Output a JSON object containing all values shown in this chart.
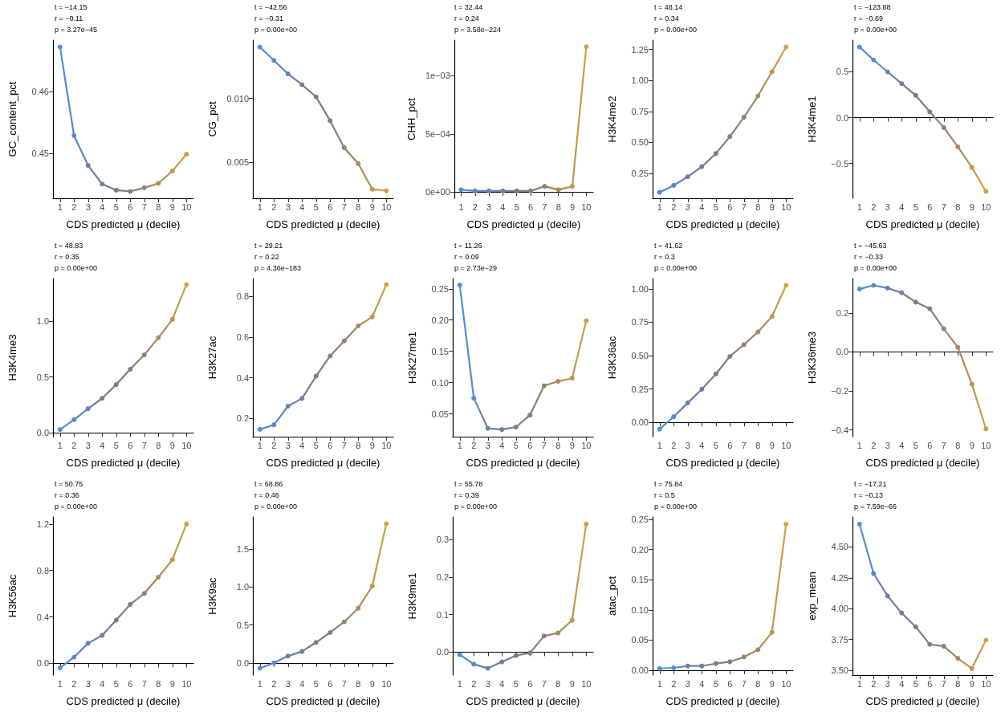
{
  "chart_data": [
    {
      "type": "line",
      "xlabel": "CDS predicted μ (decile)",
      "ylabel": "GC_content_pct",
      "categories": [
        "1",
        "2",
        "3",
        "4",
        "5",
        "6",
        "7",
        "8",
        "9",
        "10"
      ],
      "marker": "circle",
      "ylim": [
        0.4428,
        0.4683
      ],
      "yticks": [
        0.45,
        0.46
      ],
      "annotations": [
        "t = −14.15",
        "r = −0.11",
        "p = 3.27e−45"
      ],
      "series": [
        {
          "values": [
            0.4672,
            0.4529,
            0.4481,
            0.4451,
            0.4441,
            0.4439,
            0.4445,
            0.4452,
            0.4472,
            0.4499
          ],
          "colors": [
            "#4d8fdf",
            "#5a88c8",
            "#6582b0",
            "#6f7e9a",
            "#787c86",
            "#837f78",
            "#938170",
            "#a88a5e",
            "#bf944d",
            "#d4a03f"
          ]
        }
      ]
    },
    {
      "type": "line",
      "xlabel": "CDS predicted μ (decile)",
      "ylabel": "CG_pct",
      "categories": [
        "1",
        "2",
        "3",
        "4",
        "5",
        "6",
        "7",
        "8",
        "9",
        "10"
      ],
      "marker": "circle",
      "ylim": [
        0.00214,
        0.0146
      ],
      "yticks": [
        0.005,
        {
          "value": 0.01,
          "label": "0.010"
        }
      ],
      "annotations": [
        "t = −42.56",
        "r = −0.31",
        "p = 0.00e+00"
      ],
      "series": [
        {
          "values": [
            0.01406,
            0.013,
            0.01194,
            0.01109,
            0.01013,
            0.00825,
            0.00613,
            0.00487,
            0.00285,
            0.00273
          ],
          "colors": [
            "#4d8fdf",
            "#5a88c8",
            "#6582b0",
            "#6f7e9a",
            "#787c86",
            "#837f78",
            "#938170",
            "#a88a5e",
            "#bf944d",
            "#d4a03f"
          ]
        }
      ]
    },
    {
      "type": "line",
      "xlabel": "CDS predicted μ (decile)",
      "ylabel": "CHH_pct",
      "categories": [
        "1",
        "2",
        "3",
        "4",
        "5",
        "6",
        "7",
        "8",
        "9",
        "10"
      ],
      "marker": "circle",
      "ylim": [
        -5.3e-05,
        0.001307
      ],
      "yticks": [
        {
          "value": 0,
          "label": "0e+00"
        },
        {
          "value": 0.0005,
          "label": "5e−04"
        },
        {
          "value": 0.001,
          "label": "1e−03"
        }
      ],
      "annotations": [
        "t = 32.44",
        "r = 0.24",
        "p = 3.58e−224"
      ],
      "series": [
        {
          "values": [
            2e-05,
            1e-05,
            1e-05,
            1e-05,
            1e-05,
            1e-05,
            5e-05,
            2e-05,
            5e-05,
            0.00125
          ],
          "colors": [
            "#4d8fdf",
            "#5a88c8",
            "#6582b0",
            "#6f7e9a",
            "#787c86",
            "#837f78",
            "#938170",
            "#a88a5e",
            "#bf944d",
            "#d4a03f"
          ]
        }
      ]
    },
    {
      "type": "line",
      "xlabel": "CDS predicted μ (decile)",
      "ylabel": "H3K4me2",
      "categories": [
        "1",
        "2",
        "3",
        "4",
        "5",
        "6",
        "7",
        "8",
        "9",
        "10"
      ],
      "marker": "circle",
      "ylim": [
        0.048,
        1.326
      ],
      "yticks": [
        0.25,
        {
          "value": 0.5,
          "label": "0.50"
        },
        0.75,
        {
          "value": 1,
          "label": "1.00"
        },
        1.25
      ],
      "annotations": [
        "t = 48.14",
        "r = 0.34",
        "p = 0.00e+00"
      ],
      "series": [
        {
          "values": [
            0.096,
            0.152,
            0.222,
            0.303,
            0.409,
            0.547,
            0.703,
            0.875,
            1.071,
            1.27
          ],
          "colors": [
            "#4d8fdf",
            "#5a88c8",
            "#6582b0",
            "#6f7e9a",
            "#787c86",
            "#837f78",
            "#938170",
            "#a88a5e",
            "#bf944d",
            "#d4a03f"
          ]
        }
      ]
    },
    {
      "type": "line",
      "xlabel": "CDS predicted μ (decile)",
      "ylabel": "H3K4me1",
      "categories": [
        "1",
        "2",
        "3",
        "4",
        "5",
        "6",
        "7",
        "8",
        "9",
        "10"
      ],
      "marker": "circle",
      "ylim": [
        -0.88,
        0.846
      ],
      "yticks": [
        {
          "value": -0.5,
          "label": "−0.5"
        },
        {
          "value": 0,
          "label": "0.0"
        },
        0.5
      ],
      "annotations": [
        "t = −123.88",
        "r = −0.69",
        "p = 0.00e+00"
      ],
      "series": [
        {
          "values": [
            0.771,
            0.629,
            0.5,
            0.371,
            0.243,
            0.064,
            -0.108,
            -0.318,
            -0.544,
            -0.805
          ],
          "colors": [
            "#4d8fdf",
            "#5a88c8",
            "#6582b0",
            "#6f7e9a",
            "#787c86",
            "#837f78",
            "#938170",
            "#a88a5e",
            "#bf944d",
            "#d4a03f"
          ]
        }
      ]
    },
    {
      "type": "line",
      "xlabel": "CDS predicted μ (decile)",
      "ylabel": "H3K4me3",
      "categories": [
        "1",
        "2",
        "3",
        "4",
        "5",
        "6",
        "7",
        "8",
        "9",
        "10"
      ],
      "marker": "circle",
      "ylim": [
        -0.033,
        1.378
      ],
      "yticks": [
        {
          "value": 0,
          "label": "0.0"
        },
        0.5,
        {
          "value": 1,
          "label": "1.0"
        }
      ],
      "annotations": [
        "t = 48.83",
        "r = 0.35",
        "p = 0.00e+00"
      ],
      "series": [
        {
          "values": [
            0.031,
            0.119,
            0.217,
            0.309,
            0.432,
            0.568,
            0.697,
            0.85,
            1.013,
            1.324
          ],
          "colors": [
            "#4d8fdf",
            "#5a88c8",
            "#6582b0",
            "#6f7e9a",
            "#787c86",
            "#837f78",
            "#938170",
            "#a88a5e",
            "#bf944d",
            "#d4a03f"
          ]
        }
      ]
    },
    {
      "type": "line",
      "xlabel": "CDS predicted μ (decile)",
      "ylabel": "H3K27ac",
      "categories": [
        "1",
        "2",
        "3",
        "4",
        "5",
        "6",
        "7",
        "8",
        "9",
        "10"
      ],
      "marker": "circle",
      "ylim": [
        0.11,
        0.888
      ],
      "yticks": [
        0.2,
        0.4,
        0.6,
        0.8
      ],
      "annotations": [
        "t = 29.21",
        "r = 0.22",
        "p = 4.36e−183"
      ],
      "series": [
        {
          "values": [
            0.146,
            0.168,
            0.26,
            0.298,
            0.408,
            0.507,
            0.581,
            0.655,
            0.699,
            0.858
          ],
          "colors": [
            "#4d8fdf",
            "#5a88c8",
            "#6582b0",
            "#6f7e9a",
            "#787c86",
            "#837f78",
            "#938170",
            "#a88a5e",
            "#bf944d",
            "#d4a03f"
          ]
        }
      ]
    },
    {
      "type": "line",
      "xlabel": "CDS predicted μ (decile)",
      "ylabel": "H3K27me1",
      "categories": [
        "1",
        "2",
        "3",
        "4",
        "5",
        "6",
        "7",
        "8",
        "9",
        "10"
      ],
      "marker": "circle",
      "ylim": [
        0.0136,
        0.2664
      ],
      "yticks": [
        0.05,
        {
          "value": 0.1,
          "label": "0.10"
        },
        0.15,
        {
          "value": 0.2,
          "label": "0.20"
        },
        0.25
      ],
      "annotations": [
        "t = 11.26",
        "r = 0.09",
        "p = 2.73e−29"
      ],
      "series": [
        {
          "values": [
            0.256,
            0.075,
            0.027,
            0.025,
            0.029,
            0.048,
            0.095,
            0.102,
            0.107,
            0.199
          ],
          "colors": [
            "#4d8fdf",
            "#5a88c8",
            "#6582b0",
            "#6f7e9a",
            "#787c86",
            "#837f78",
            "#938170",
            "#a88a5e",
            "#bf944d",
            "#d4a03f"
          ]
        }
      ]
    },
    {
      "type": "line",
      "xlabel": "CDS predicted μ (decile)",
      "ylabel": "H3K36ac",
      "categories": [
        "1",
        "2",
        "3",
        "4",
        "5",
        "6",
        "7",
        "8",
        "9",
        "10"
      ],
      "marker": "circle",
      "ylim": [
        -0.107,
        1.077
      ],
      "yticks": [
        {
          "value": 0,
          "label": "0.00"
        },
        0.25,
        {
          "value": 0.5,
          "label": "0.50"
        },
        0.75,
        {
          "value": 1,
          "label": "1.00"
        }
      ],
      "annotations": [
        "t = 41.62",
        "r = 0.3",
        "p = 0.00e+00"
      ],
      "series": [
        {
          "values": [
            -0.051,
            0.042,
            0.146,
            0.248,
            0.362,
            0.494,
            0.582,
            0.677,
            0.793,
            1.026
          ],
          "colors": [
            "#4d8fdf",
            "#5a88c8",
            "#6582b0",
            "#6f7e9a",
            "#787c86",
            "#837f78",
            "#938170",
            "#a88a5e",
            "#bf944d",
            "#d4a03f"
          ]
        }
      ]
    },
    {
      "type": "line",
      "xlabel": "CDS predicted μ (decile)",
      "ylabel": "H3K36me3",
      "categories": [
        "1",
        "2",
        "3",
        "4",
        "5",
        "6",
        "7",
        "8",
        "9",
        "10"
      ],
      "marker": "circle",
      "ylim": [
        -0.435,
        0.377
      ],
      "yticks": [
        {
          "value": -0.4,
          "label": "−0.4"
        },
        {
          "value": -0.2,
          "label": "−0.2"
        },
        {
          "value": 0,
          "label": "0.0"
        },
        0.2
      ],
      "annotations": [
        "t = −45.63",
        "r = −0.33",
        "p = 0.00e+00"
      ],
      "series": [
        {
          "values": [
            0.323,
            0.342,
            0.328,
            0.304,
            0.256,
            0.222,
            0.119,
            0.024,
            -0.165,
            -0.395
          ],
          "colors": [
            "#4d8fdf",
            "#5a88c8",
            "#6582b0",
            "#6f7e9a",
            "#787c86",
            "#837f78",
            "#938170",
            "#a88a5e",
            "#bf944d",
            "#d4a03f"
          ]
        }
      ]
    },
    {
      "type": "line",
      "xlabel": "CDS predicted μ (decile)",
      "ylabel": "H3K56ac",
      "categories": [
        "1",
        "2",
        "3",
        "4",
        "5",
        "6",
        "7",
        "8",
        "9",
        "10"
      ],
      "marker": "circle",
      "ylim": [
        -0.101,
        1.261
      ],
      "yticks": [
        {
          "value": 0,
          "label": "0.0"
        },
        0.4,
        0.8,
        1.2
      ],
      "annotations": [
        "t = 50.75",
        "r = 0.36",
        "p = 0.00e+00"
      ],
      "series": [
        {
          "values": [
            -0.039,
            0.053,
            0.173,
            0.241,
            0.372,
            0.508,
            0.602,
            0.742,
            0.893,
            1.2
          ],
          "colors": [
            "#4d8fdf",
            "#5a88c8",
            "#6582b0",
            "#6f7e9a",
            "#787c86",
            "#837f78",
            "#938170",
            "#a88a5e",
            "#bf944d",
            "#d4a03f"
          ]
        }
      ]
    },
    {
      "type": "line",
      "xlabel": "CDS predicted μ (decile)",
      "ylabel": "H3K9ac",
      "categories": [
        "1",
        "2",
        "3",
        "4",
        "5",
        "6",
        "7",
        "8",
        "9",
        "10"
      ],
      "marker": "circle",
      "ylim": [
        -0.16,
        1.921
      ],
      "yticks": [
        {
          "value": 0,
          "label": "0.0"
        },
        0.5,
        {
          "value": 1,
          "label": "1.0"
        },
        1.5
      ],
      "annotations": [
        "t = 68.86",
        "r = 0.46",
        "p = 0.00e+00"
      ],
      "series": [
        {
          "values": [
            -0.07,
            0,
            0.09,
            0.15,
            0.27,
            0.4,
            0.54,
            0.72,
            1.01,
            1.83
          ],
          "colors": [
            "#4d8fdf",
            "#5a88c8",
            "#6582b0",
            "#6f7e9a",
            "#787c86",
            "#837f78",
            "#938170",
            "#a88a5e",
            "#bf944d",
            "#d4a03f"
          ]
        }
      ]
    },
    {
      "type": "line",
      "xlabel": "CDS predicted μ (decile)",
      "ylabel": "H3K9me1",
      "categories": [
        "1",
        "2",
        "3",
        "4",
        "5",
        "6",
        "7",
        "8",
        "9",
        "10"
      ],
      "marker": "circle",
      "ylim": [
        -0.061,
        0.36
      ],
      "yticks": [
        {
          "value": 0,
          "label": "0.0"
        },
        0.1,
        0.2,
        0.3
      ],
      "annotations": [
        "t = 55.78",
        "r = 0.39",
        "p = 0.00e+00"
      ],
      "series": [
        {
          "values": [
            -0.007,
            -0.032,
            -0.043,
            -0.026,
            -0.009,
            -0.002,
            0.043,
            0.051,
            0.085,
            0.341
          ],
          "colors": [
            "#4d8fdf",
            "#5a88c8",
            "#6582b0",
            "#6f7e9a",
            "#787c86",
            "#837f78",
            "#938170",
            "#a88a5e",
            "#bf944d",
            "#d4a03f"
          ]
        }
      ]
    },
    {
      "type": "line",
      "xlabel": "CDS predicted μ (decile)",
      "ylabel": "atac_pct",
      "categories": [
        "1",
        "2",
        "3",
        "4",
        "5",
        "6",
        "7",
        "8",
        "9",
        "10"
      ],
      "marker": "circle",
      "ylim": [
        -0.008,
        0.254
      ],
      "yticks": [
        {
          "value": 0,
          "label": "0.00"
        },
        0.05,
        {
          "value": 0.1,
          "label": "0.10"
        },
        0.15,
        {
          "value": 0.2,
          "label": "0.20"
        },
        0.25
      ],
      "annotations": [
        "t = 75.84",
        "r = 0.5",
        "p = 0.00e+00"
      ],
      "series": [
        {
          "values": [
            0.003,
            0.004,
            0.007,
            0.007,
            0.011,
            0.014,
            0.022,
            0.034,
            0.063,
            0.242
          ],
          "colors": [
            "#4d8fdf",
            "#5a88c8",
            "#6582b0",
            "#6f7e9a",
            "#787c86",
            "#837f78",
            "#938170",
            "#a88a5e",
            "#bf944d",
            "#d4a03f"
          ]
        }
      ]
    },
    {
      "type": "line",
      "xlabel": "CDS predicted μ (decile)",
      "ylabel": "exp_mean",
      "categories": [
        "1",
        "2",
        "3",
        "4",
        "5",
        "6",
        "7",
        "8",
        "9",
        "10"
      ],
      "marker": "circle",
      "ylim": [
        3.462,
        4.744
      ],
      "yticks": [
        {
          "value": 3.5,
          "label": "3.50"
        },
        3.75,
        {
          "value": 4,
          "label": "4.00"
        },
        4.25,
        {
          "value": 4.5,
          "label": "4.50"
        }
      ],
      "annotations": [
        "t = −17.21",
        "r = −0.13",
        "p = 7.59e−66"
      ],
      "series": [
        {
          "values": [
            4.686,
            4.285,
            4.103,
            3.965,
            3.853,
            3.711,
            3.696,
            3.598,
            3.515,
            3.745
          ],
          "colors": [
            "#4d8fdf",
            "#5a88c8",
            "#6582b0",
            "#6f7e9a",
            "#787c86",
            "#837f78",
            "#938170",
            "#a88a5e",
            "#bf944d",
            "#d4a03f"
          ]
        }
      ]
    }
  ]
}
